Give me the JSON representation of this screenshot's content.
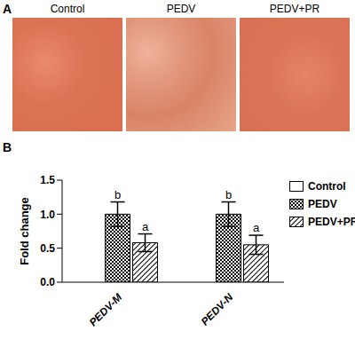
{
  "panel_labels": [
    "A",
    "B"
  ],
  "image_labels": [
    "Control",
    "PEDV",
    "PEDV+PR"
  ],
  "chart_data": {
    "type": "bar",
    "categories": [
      "PEDV-M",
      "PEDV-N"
    ],
    "y_label": "Fold change",
    "ylim": [
      0,
      1.5
    ],
    "yticks": [
      {
        "value": 0,
        "label": "0.0"
      },
      {
        "value": 0.5,
        "label": "0.5"
      },
      {
        "value": 1,
        "label": "1.0"
      },
      {
        "value": 1.5,
        "label": "1.5"
      }
    ],
    "grid": false,
    "legend": "upper right",
    "series": [
      {
        "name": "Control",
        "color": "#ffffff",
        "values": [
          null,
          null
        ]
      },
      {
        "name": "PEDV",
        "color": "#000000",
        "values": [
          1.0,
          1.0
        ],
        "errors": [
          0.18,
          0.18
        ],
        "annotations": [
          "b",
          "b"
        ]
      },
      {
        "name": "PEDV+PR",
        "color": "#000000",
        "values": [
          0.58,
          0.55
        ],
        "errors": [
          0.13,
          0.14
        ],
        "annotations": [
          "a",
          "a"
        ]
      }
    ]
  }
}
